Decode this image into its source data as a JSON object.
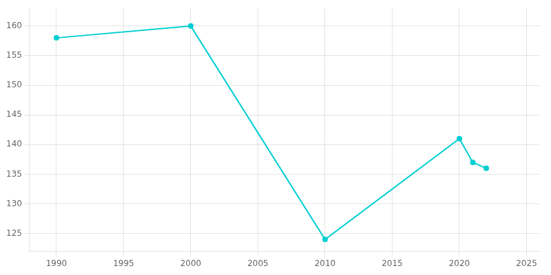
{
  "chart_data": {
    "type": "line",
    "x": [
      1990,
      2000,
      2010,
      2020,
      2021,
      2022
    ],
    "values": [
      158,
      160,
      124,
      141,
      137,
      136
    ],
    "color": "#00CED1",
    "marker": "circle",
    "xlim": [
      1988,
      2026
    ],
    "xticks": [
      1990,
      1995,
      2000,
      2005,
      2010,
      2015,
      2020,
      2025
    ],
    "ylim": [
      122,
      163
    ],
    "yticks": [
      125,
      130,
      135,
      140,
      145,
      150,
      155,
      160
    ],
    "grid": true
  }
}
